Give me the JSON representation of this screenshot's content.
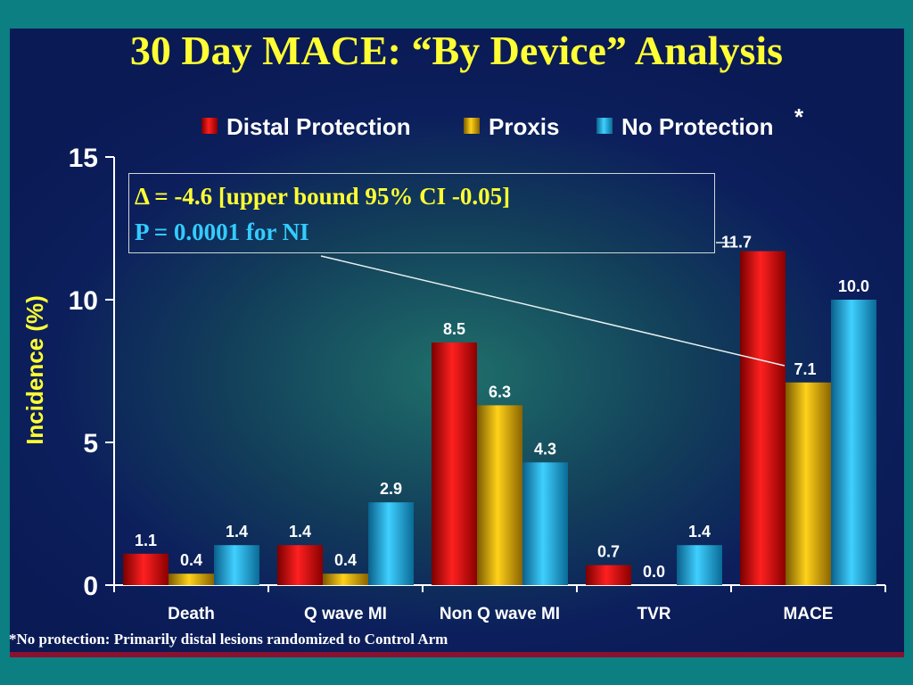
{
  "title": "30 Day MACE: “By Device” Analysis",
  "footnote": "*No protection:  Primarily distal lesions randomized to Control Arm",
  "annotation": {
    "line1": "Δ = -4.6 [upper bound 95% CI -0.05]",
    "line2": "P = 0.0001 for NI"
  },
  "chart_data": {
    "type": "bar",
    "title": "30 Day MACE: “By Device” Analysis",
    "ylabel": "Incidence (%)",
    "xlabel": "",
    "ylim": [
      0,
      15
    ],
    "yticks": [
      0,
      5,
      10,
      15
    ],
    "grid": false,
    "legend_position": "top-right",
    "categories": [
      "Death",
      "Q wave MI",
      "Non Q wave MI",
      "TVR",
      "MACE"
    ],
    "series": [
      {
        "name": "Distal Protection",
        "values": [
          1.1,
          1.4,
          8.5,
          0.7,
          11.7
        ],
        "labels": [
          "1.1",
          "1.4",
          "8.5",
          "0.7",
          "11.7"
        ],
        "color": "#e01010"
      },
      {
        "name": "Proxis",
        "values": [
          0.4,
          0.4,
          6.3,
          0.0,
          7.1
        ],
        "labels": [
          "0.4",
          "0.4",
          "6.3",
          "0.0",
          "7.1"
        ],
        "color": "#e8b800"
      },
      {
        "name": "No Protection",
        "values": [
          1.4,
          2.9,
          4.3,
          1.4,
          10.0
        ],
        "labels": [
          "1.4",
          "2.9",
          "4.3",
          "1.4",
          "10.0"
        ],
        "color": "#1fb8e8"
      }
    ],
    "legend_footnote_mark": "*"
  }
}
